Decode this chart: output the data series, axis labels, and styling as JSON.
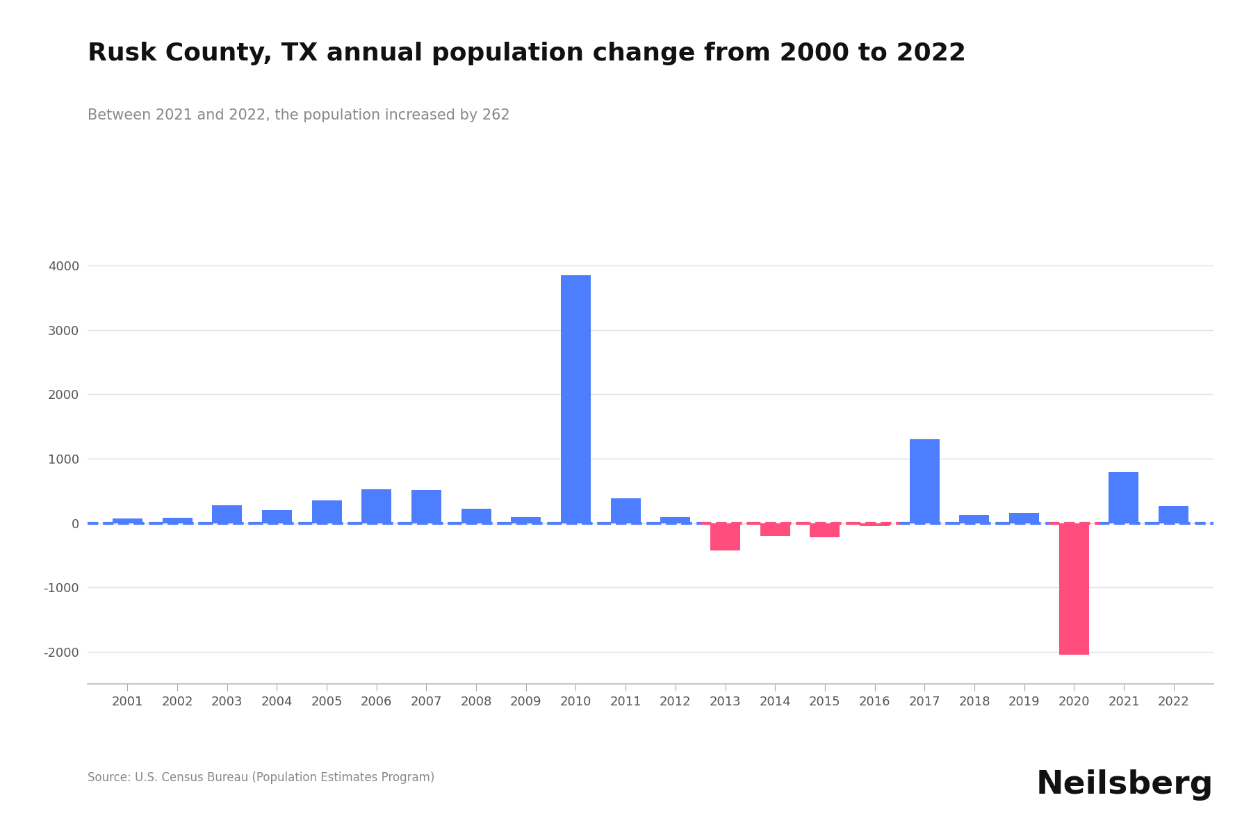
{
  "title": "Rusk County, TX annual population change from 2000 to 2022",
  "subtitle": "Between 2021 and 2022, the population increased by 262",
  "source": "Source: U.S. Census Bureau (Population Estimates Program)",
  "branding": "Neilsberg",
  "years": [
    2001,
    2002,
    2003,
    2004,
    2005,
    2006,
    2007,
    2008,
    2009,
    2010,
    2011,
    2012,
    2013,
    2014,
    2015,
    2016,
    2017,
    2018,
    2019,
    2020,
    2021,
    2022
  ],
  "values": [
    75,
    80,
    275,
    200,
    350,
    520,
    510,
    220,
    90,
    3850,
    380,
    90,
    -430,
    -200,
    -220,
    -50,
    1300,
    130,
    160,
    -2050,
    800,
    262
  ],
  "bar_colors": [
    "#4d7eff",
    "#4d7eff",
    "#4d7eff",
    "#4d7eff",
    "#4d7eff",
    "#4d7eff",
    "#4d7eff",
    "#4d7eff",
    "#4d7eff",
    "#4d7eff",
    "#4d7eff",
    "#4d7eff",
    "#ff4d7e",
    "#ff4d7e",
    "#ff4d7e",
    "#ff4d7e",
    "#4d7eff",
    "#4d7eff",
    "#4d7eff",
    "#ff4d7e",
    "#4d7eff",
    "#4d7eff"
  ],
  "dashed_line_blue": "#4d7eff",
  "dashed_line_red": "#ff4d7e",
  "ylim": [
    -2500,
    4500
  ],
  "yticks": [
    -2000,
    -1000,
    0,
    1000,
    2000,
    3000,
    4000
  ],
  "background_color": "#ffffff",
  "grid_color": "#e0e0ea",
  "title_fontsize": 26,
  "subtitle_fontsize": 15,
  "tick_fontsize": 13,
  "source_fontsize": 12,
  "branding_fontsize": 34,
  "bar_width": 0.6
}
